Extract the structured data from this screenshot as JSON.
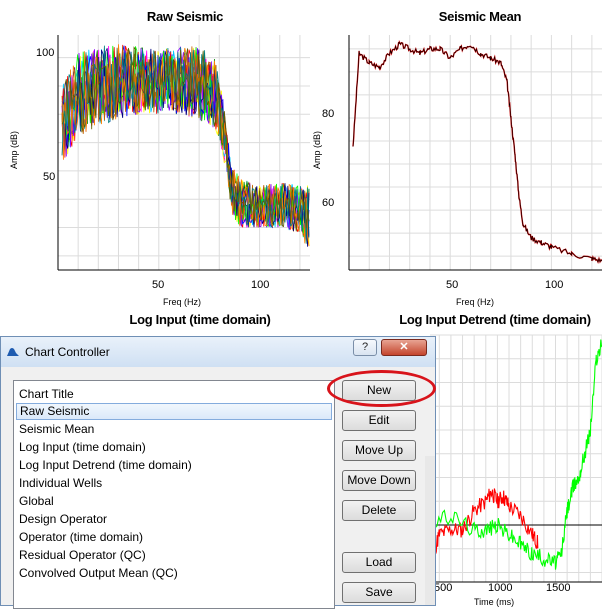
{
  "charts": [
    {
      "title": "Raw Seismic",
      "xlabel": "Freq (Hz)",
      "ylabel": "Amp (dB)",
      "x_ticks": [
        "50",
        "100"
      ],
      "y_ticks": [
        "100",
        "50"
      ]
    },
    {
      "title": "Seismic Mean",
      "xlabel": "Freq (Hz)",
      "ylabel": "Amp (dB)",
      "x_ticks": [
        "50",
        "100"
      ],
      "y_ticks": [
        "80",
        "60"
      ]
    },
    {
      "title": "Log Input (time domain)"
    },
    {
      "title": "Log Input Detrend (time domain)",
      "xlabel": "Time (ms)",
      "x_ticks": [
        "500",
        "1000",
        "1500"
      ]
    }
  ],
  "chart_data": [
    {
      "type": "line",
      "title": "Raw Seismic",
      "xlabel": "Freq (Hz)",
      "ylabel": "Amp (dB)",
      "xlim": [
        0,
        125
      ],
      "ylim": [
        25,
        108
      ],
      "note_series": "many overlapping multicolored traces",
      "x": [
        2,
        10,
        20,
        30,
        40,
        50,
        60,
        70,
        78,
        82,
        86,
        90,
        100,
        110,
        120,
        125
      ],
      "series_band_low": [
        62,
        72,
        76,
        78,
        80,
        80,
        80,
        78,
        75,
        65,
        45,
        40,
        40,
        40,
        38,
        30
      ],
      "series_band_high": [
        90,
        102,
        104,
        105,
        104,
        103,
        104,
        104,
        100,
        85,
        62,
        58,
        55,
        56,
        55,
        55
      ]
    },
    {
      "type": "line",
      "title": "Seismic Mean",
      "xlabel": "Freq (Hz)",
      "ylabel": "Amp (dB)",
      "xlim": [
        0,
        125
      ],
      "ylim": [
        47,
        98
      ],
      "x": [
        2,
        5,
        10,
        15,
        20,
        25,
        30,
        35,
        40,
        45,
        50,
        55,
        60,
        65,
        70,
        75,
        78,
        80,
        82,
        84,
        86,
        90,
        95,
        100,
        110,
        120,
        125
      ],
      "values": [
        74,
        94,
        92,
        91,
        94,
        96,
        95,
        94,
        95,
        95,
        93,
        95,
        96,
        94,
        93,
        92,
        88,
        80,
        72,
        63,
        57,
        54,
        53,
        52,
        50.5,
        49.5,
        49
      ]
    },
    {
      "type": "line",
      "title": "Log Input Detrend (time domain)",
      "xlabel": "Time (ms)",
      "xlim": [
        200,
        1900
      ],
      "x_ticks": [
        500,
        1000,
        1500
      ],
      "series": [
        {
          "name": "",
          "color": "#ff0000",
          "x": [
            250,
            350,
            450,
            500,
            600,
            700,
            800,
            900,
            950,
            1000,
            1050,
            1100,
            1200,
            1300,
            1350
          ],
          "values": [
            0.0,
            -0.3,
            -0.6,
            -0.2,
            -0.1,
            -0.1,
            0.3,
            0.5,
            0.7,
            0.5,
            0.6,
            0.4,
            0.2,
            -0.2,
            -0.4
          ]
        },
        {
          "name": "",
          "color": "#00ff00",
          "x": [
            250,
            400,
            600,
            800,
            900,
            1000,
            1100,
            1200,
            1300,
            1400,
            1500,
            1550,
            1600,
            1650,
            1700,
            1750,
            1800,
            1850,
            1900
          ],
          "values": [
            0.0,
            0.0,
            0.2,
            -0.1,
            -0.1,
            0.0,
            -0.2,
            -0.4,
            -0.6,
            -0.7,
            -0.8,
            -0.6,
            0.3,
            0.8,
            1.0,
            1.5,
            2.0,
            3.5,
            3.8
          ]
        }
      ]
    }
  ],
  "dialog": {
    "title": "Chart Controller",
    "help_label": "?",
    "close_label": "✕",
    "list_header": "Chart Title",
    "items": [
      "Raw Seismic",
      "Seismic Mean",
      "Log Input (time domain)",
      "Log Input Detrend (time domain)",
      "Individual Wells",
      "Global",
      "Design Operator",
      "Operator (time domain)",
      "Residual Operator (QC)",
      "Convolved Output Mean (QC)"
    ],
    "selected_index": 0,
    "buttons": {
      "new": "New",
      "edit": "Edit",
      "move_up": "Move Up",
      "move_down": "Move Down",
      "delete": "Delete",
      "load": "Load",
      "save": "Save"
    },
    "highlight_color": "#d8141b"
  }
}
